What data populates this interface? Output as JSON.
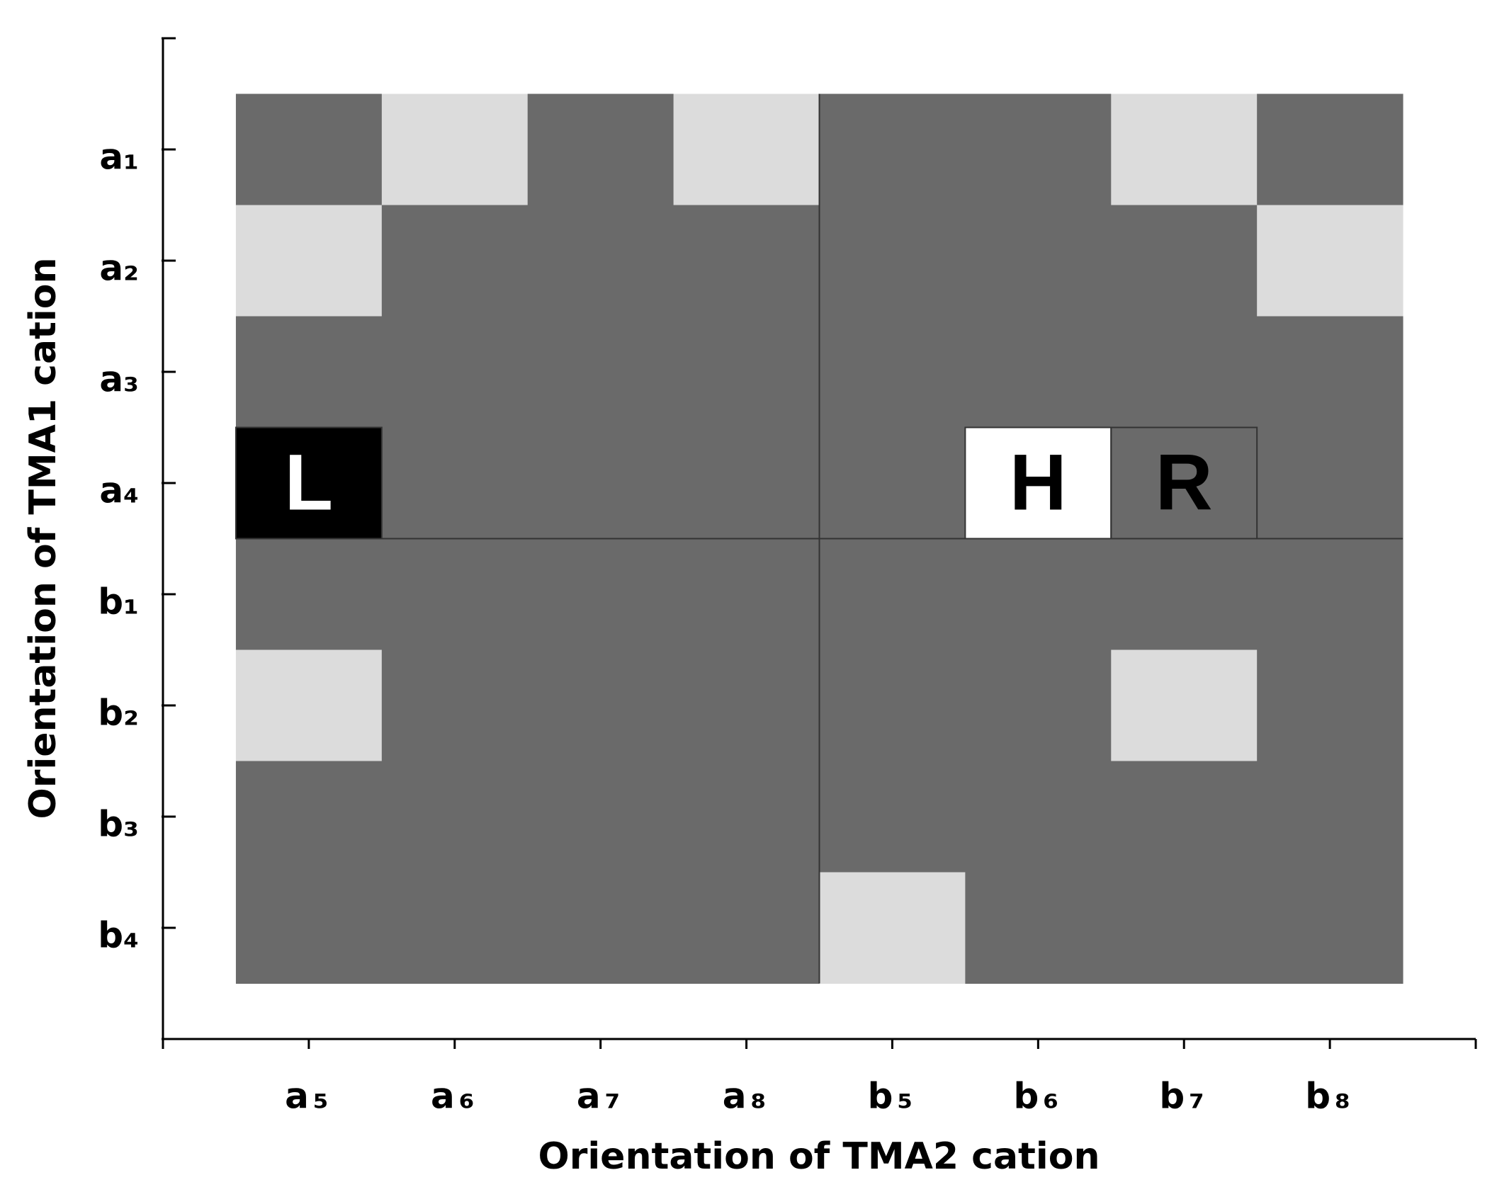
{
  "chart_data": {
    "type": "heatmap",
    "x_label": "Orientation of TMA2 cation",
    "y_label": "Orientation of TMA1 cation",
    "x_categories": [
      "a₅",
      "a₆",
      "a₇",
      "a₈",
      "b₅",
      "b₆",
      "b₇",
      "b₈"
    ],
    "y_categories": [
      "a₁",
      "a₂",
      "a₃",
      "a₄",
      "b₁",
      "b₂",
      "b₃",
      "b₄"
    ],
    "colors": [
      [
        "#6a6a6a",
        "#dcdcdc",
        "#6a6a6a",
        "#dcdcdc",
        "#6a6a6a",
        "#6a6a6a",
        "#dcdcdc",
        "#6a6a6a"
      ],
      [
        "#dcdcdc",
        "#6a6a6a",
        "#6a6a6a",
        "#6a6a6a",
        "#6a6a6a",
        "#6a6a6a",
        "#6a6a6a",
        "#dcdcdc"
      ],
      [
        "#6a6a6a",
        "#6a6a6a",
        "#6a6a6a",
        "#6a6a6a",
        "#6a6a6a",
        "#6a6a6a",
        "#6a6a6a",
        "#6a6a6a"
      ],
      [
        "#000000",
        "#6a6a6a",
        "#6a6a6a",
        "#6a6a6a",
        "#6a6a6a",
        "#ffffff",
        "#6a6a6a",
        "#6a6a6a"
      ],
      [
        "#6a6a6a",
        "#6a6a6a",
        "#6a6a6a",
        "#6a6a6a",
        "#6a6a6a",
        "#6a6a6a",
        "#6a6a6a",
        "#6a6a6a"
      ],
      [
        "#dcdcdc",
        "#6a6a6a",
        "#6a6a6a",
        "#6a6a6a",
        "#6a6a6a",
        "#6a6a6a",
        "#dcdcdc",
        "#6a6a6a"
      ],
      [
        "#6a6a6a",
        "#6a6a6a",
        "#6a6a6a",
        "#6a6a6a",
        "#6a6a6a",
        "#6a6a6a",
        "#6a6a6a",
        "#6a6a6a"
      ],
      [
        "#6a6a6a",
        "#6a6a6a",
        "#6a6a6a",
        "#6a6a6a",
        "#dcdcdc",
        "#6a6a6a",
        "#6a6a6a",
        "#6a6a6a"
      ]
    ],
    "annotations": [
      {
        "text": "L",
        "x": "a₅",
        "y": "a₄",
        "color": "#ffffff"
      },
      {
        "text": "H",
        "x": "b₆",
        "y": "a₄",
        "color": "#000000"
      },
      {
        "text": "R",
        "x": "b₇",
        "y": "a₄",
        "color": "#000000"
      }
    ]
  }
}
